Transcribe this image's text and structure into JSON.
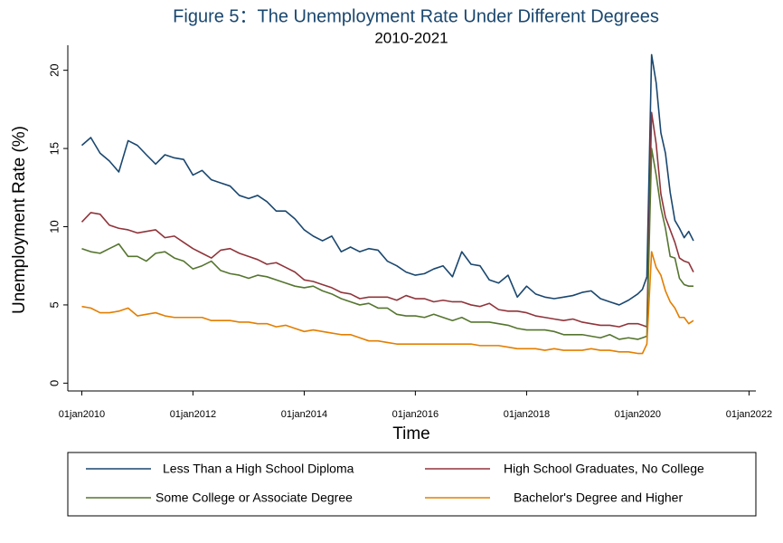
{
  "chart_data": {
    "type": "line",
    "title": "Figure 5：The Unemployment Rate Under Different Degrees",
    "subtitle": "2010-2021",
    "x_label": "Time",
    "y_label": "Unemployment Rate (%)",
    "x": [
      "2010-01-01",
      "2010-03-01",
      "2010-05-01",
      "2010-07-01",
      "2010-09-01",
      "2010-11-01",
      "2011-01-01",
      "2011-03-01",
      "2011-05-01",
      "2011-07-01",
      "2011-09-01",
      "2011-11-01",
      "2012-01-01",
      "2012-03-01",
      "2012-05-01",
      "2012-07-01",
      "2012-09-01",
      "2012-11-01",
      "2013-01-01",
      "2013-03-01",
      "2013-05-01",
      "2013-07-01",
      "2013-09-01",
      "2013-11-01",
      "2014-01-01",
      "2014-03-01",
      "2014-05-01",
      "2014-07-01",
      "2014-09-01",
      "2014-11-01",
      "2015-01-01",
      "2015-03-01",
      "2015-05-01",
      "2015-07-01",
      "2015-09-01",
      "2015-11-01",
      "2016-01-01",
      "2016-03-01",
      "2016-05-01",
      "2016-07-01",
      "2016-09-01",
      "2016-11-01",
      "2017-01-01",
      "2017-03-01",
      "2017-05-01",
      "2017-07-01",
      "2017-09-01",
      "2017-11-01",
      "2018-01-01",
      "2018-03-01",
      "2018-05-01",
      "2018-07-01",
      "2018-09-01",
      "2018-11-01",
      "2019-01-01",
      "2019-03-01",
      "2019-05-01",
      "2019-07-01",
      "2019-09-01",
      "2019-11-01",
      "2020-01-01",
      "2020-02-01",
      "2020-03-01",
      "2020-04-01",
      "2020-05-01",
      "2020-06-01",
      "2020-07-01",
      "2020-08-01",
      "2020-09-01",
      "2020-10-01",
      "2020-11-01",
      "2020-12-01",
      "2021-01-01"
    ],
    "series": [
      {
        "name": "Less Than a High School Diploma",
        "color": "#1a476f",
        "values": [
          15.2,
          15.7,
          14.7,
          14.2,
          13.5,
          15.5,
          15.2,
          14.6,
          14.0,
          14.6,
          14.4,
          14.3,
          13.3,
          13.6,
          13.0,
          12.8,
          12.6,
          12.0,
          11.8,
          12.0,
          11.6,
          11.0,
          11.0,
          10.5,
          9.8,
          9.4,
          9.1,
          9.4,
          8.4,
          8.7,
          8.4,
          8.6,
          8.5,
          7.8,
          7.5,
          7.1,
          6.9,
          7.0,
          7.3,
          7.5,
          6.8,
          8.4,
          7.6,
          7.5,
          6.6,
          6.4,
          6.9,
          5.5,
          6.2,
          5.7,
          5.5,
          5.4,
          5.5,
          5.6,
          5.8,
          5.9,
          5.4,
          5.2,
          5.0,
          5.3,
          5.7,
          6.0,
          6.8,
          21.0,
          19.2,
          16.0,
          14.7,
          12.2,
          10.4,
          9.9,
          9.3,
          9.7,
          9.1
        ]
      },
      {
        "name": "High School Graduates, No College",
        "color": "#90353b",
        "values": [
          10.3,
          10.9,
          10.8,
          10.1,
          9.9,
          9.8,
          9.6,
          9.7,
          9.8,
          9.3,
          9.4,
          9.0,
          8.6,
          8.3,
          8.0,
          8.5,
          8.6,
          8.3,
          8.1,
          7.9,
          7.6,
          7.7,
          7.4,
          7.1,
          6.6,
          6.5,
          6.3,
          6.1,
          5.8,
          5.7,
          5.4,
          5.5,
          5.5,
          5.5,
          5.3,
          5.6,
          5.4,
          5.4,
          5.2,
          5.3,
          5.2,
          5.2,
          5.0,
          4.9,
          5.1,
          4.7,
          4.6,
          4.6,
          4.5,
          4.3,
          4.2,
          4.1,
          4.0,
          4.1,
          3.9,
          3.8,
          3.7,
          3.7,
          3.6,
          3.8,
          3.8,
          3.7,
          3.6,
          17.3,
          15.3,
          12.1,
          10.6,
          9.8,
          9.0,
          8.0,
          7.8,
          7.7,
          7.1
        ]
      },
      {
        "name": "Some College or Associate Degree",
        "color": "#55752f",
        "values": [
          8.6,
          8.4,
          8.3,
          8.6,
          8.9,
          8.1,
          8.1,
          7.8,
          8.3,
          8.4,
          8.0,
          7.8,
          7.3,
          7.5,
          7.8,
          7.2,
          7.0,
          6.9,
          6.7,
          6.9,
          6.8,
          6.6,
          6.4,
          6.2,
          6.1,
          6.2,
          5.9,
          5.7,
          5.4,
          5.2,
          5.0,
          5.1,
          4.8,
          4.8,
          4.4,
          4.3,
          4.3,
          4.2,
          4.4,
          4.2,
          4.0,
          4.2,
          3.9,
          3.9,
          3.9,
          3.8,
          3.7,
          3.5,
          3.4,
          3.4,
          3.4,
          3.3,
          3.1,
          3.1,
          3.1,
          3.0,
          2.9,
          3.1,
          2.8,
          2.9,
          2.8,
          2.9,
          3.0,
          15.0,
          13.3,
          11.2,
          9.9,
          8.1,
          8.0,
          6.7,
          6.3,
          6.2,
          6.2
        ]
      },
      {
        "name": "Bachelor's Degree and Higher",
        "color": "#e37e00",
        "values": [
          4.9,
          4.8,
          4.5,
          4.5,
          4.6,
          4.8,
          4.3,
          4.4,
          4.5,
          4.3,
          4.2,
          4.2,
          4.2,
          4.2,
          4.0,
          4.0,
          4.0,
          3.9,
          3.9,
          3.8,
          3.8,
          3.6,
          3.7,
          3.5,
          3.3,
          3.4,
          3.3,
          3.2,
          3.1,
          3.1,
          2.9,
          2.7,
          2.7,
          2.6,
          2.5,
          2.5,
          2.5,
          2.5,
          2.5,
          2.5,
          2.5,
          2.5,
          2.5,
          2.4,
          2.4,
          2.4,
          2.3,
          2.2,
          2.2,
          2.2,
          2.1,
          2.2,
          2.1,
          2.1,
          2.1,
          2.2,
          2.1,
          2.1,
          2.0,
          2.0,
          1.9,
          1.9,
          2.5,
          8.4,
          7.4,
          6.9,
          5.9,
          5.2,
          4.8,
          4.2,
          4.2,
          3.8,
          4.0
        ]
      }
    ],
    "xlim": [
      "2009-10-01",
      "2022-02-15"
    ],
    "xticks": [
      {
        "value": "2010-01-01",
        "label": "01jan2010"
      },
      {
        "value": "2012-01-01",
        "label": "01jan2012"
      },
      {
        "value": "2014-01-01",
        "label": "01jan2014"
      },
      {
        "value": "2016-01-01",
        "label": "01jan2016"
      },
      {
        "value": "2018-01-01",
        "label": "01jan2018"
      },
      {
        "value": "2020-01-01",
        "label": "01jan2020"
      },
      {
        "value": "2022-01-01",
        "label": "01jan2022"
      }
    ],
    "ylim": [
      -0.5,
      21.6
    ],
    "yticks": [
      0,
      5,
      10,
      15,
      20
    ],
    "grid": false,
    "legend": "bottom"
  }
}
